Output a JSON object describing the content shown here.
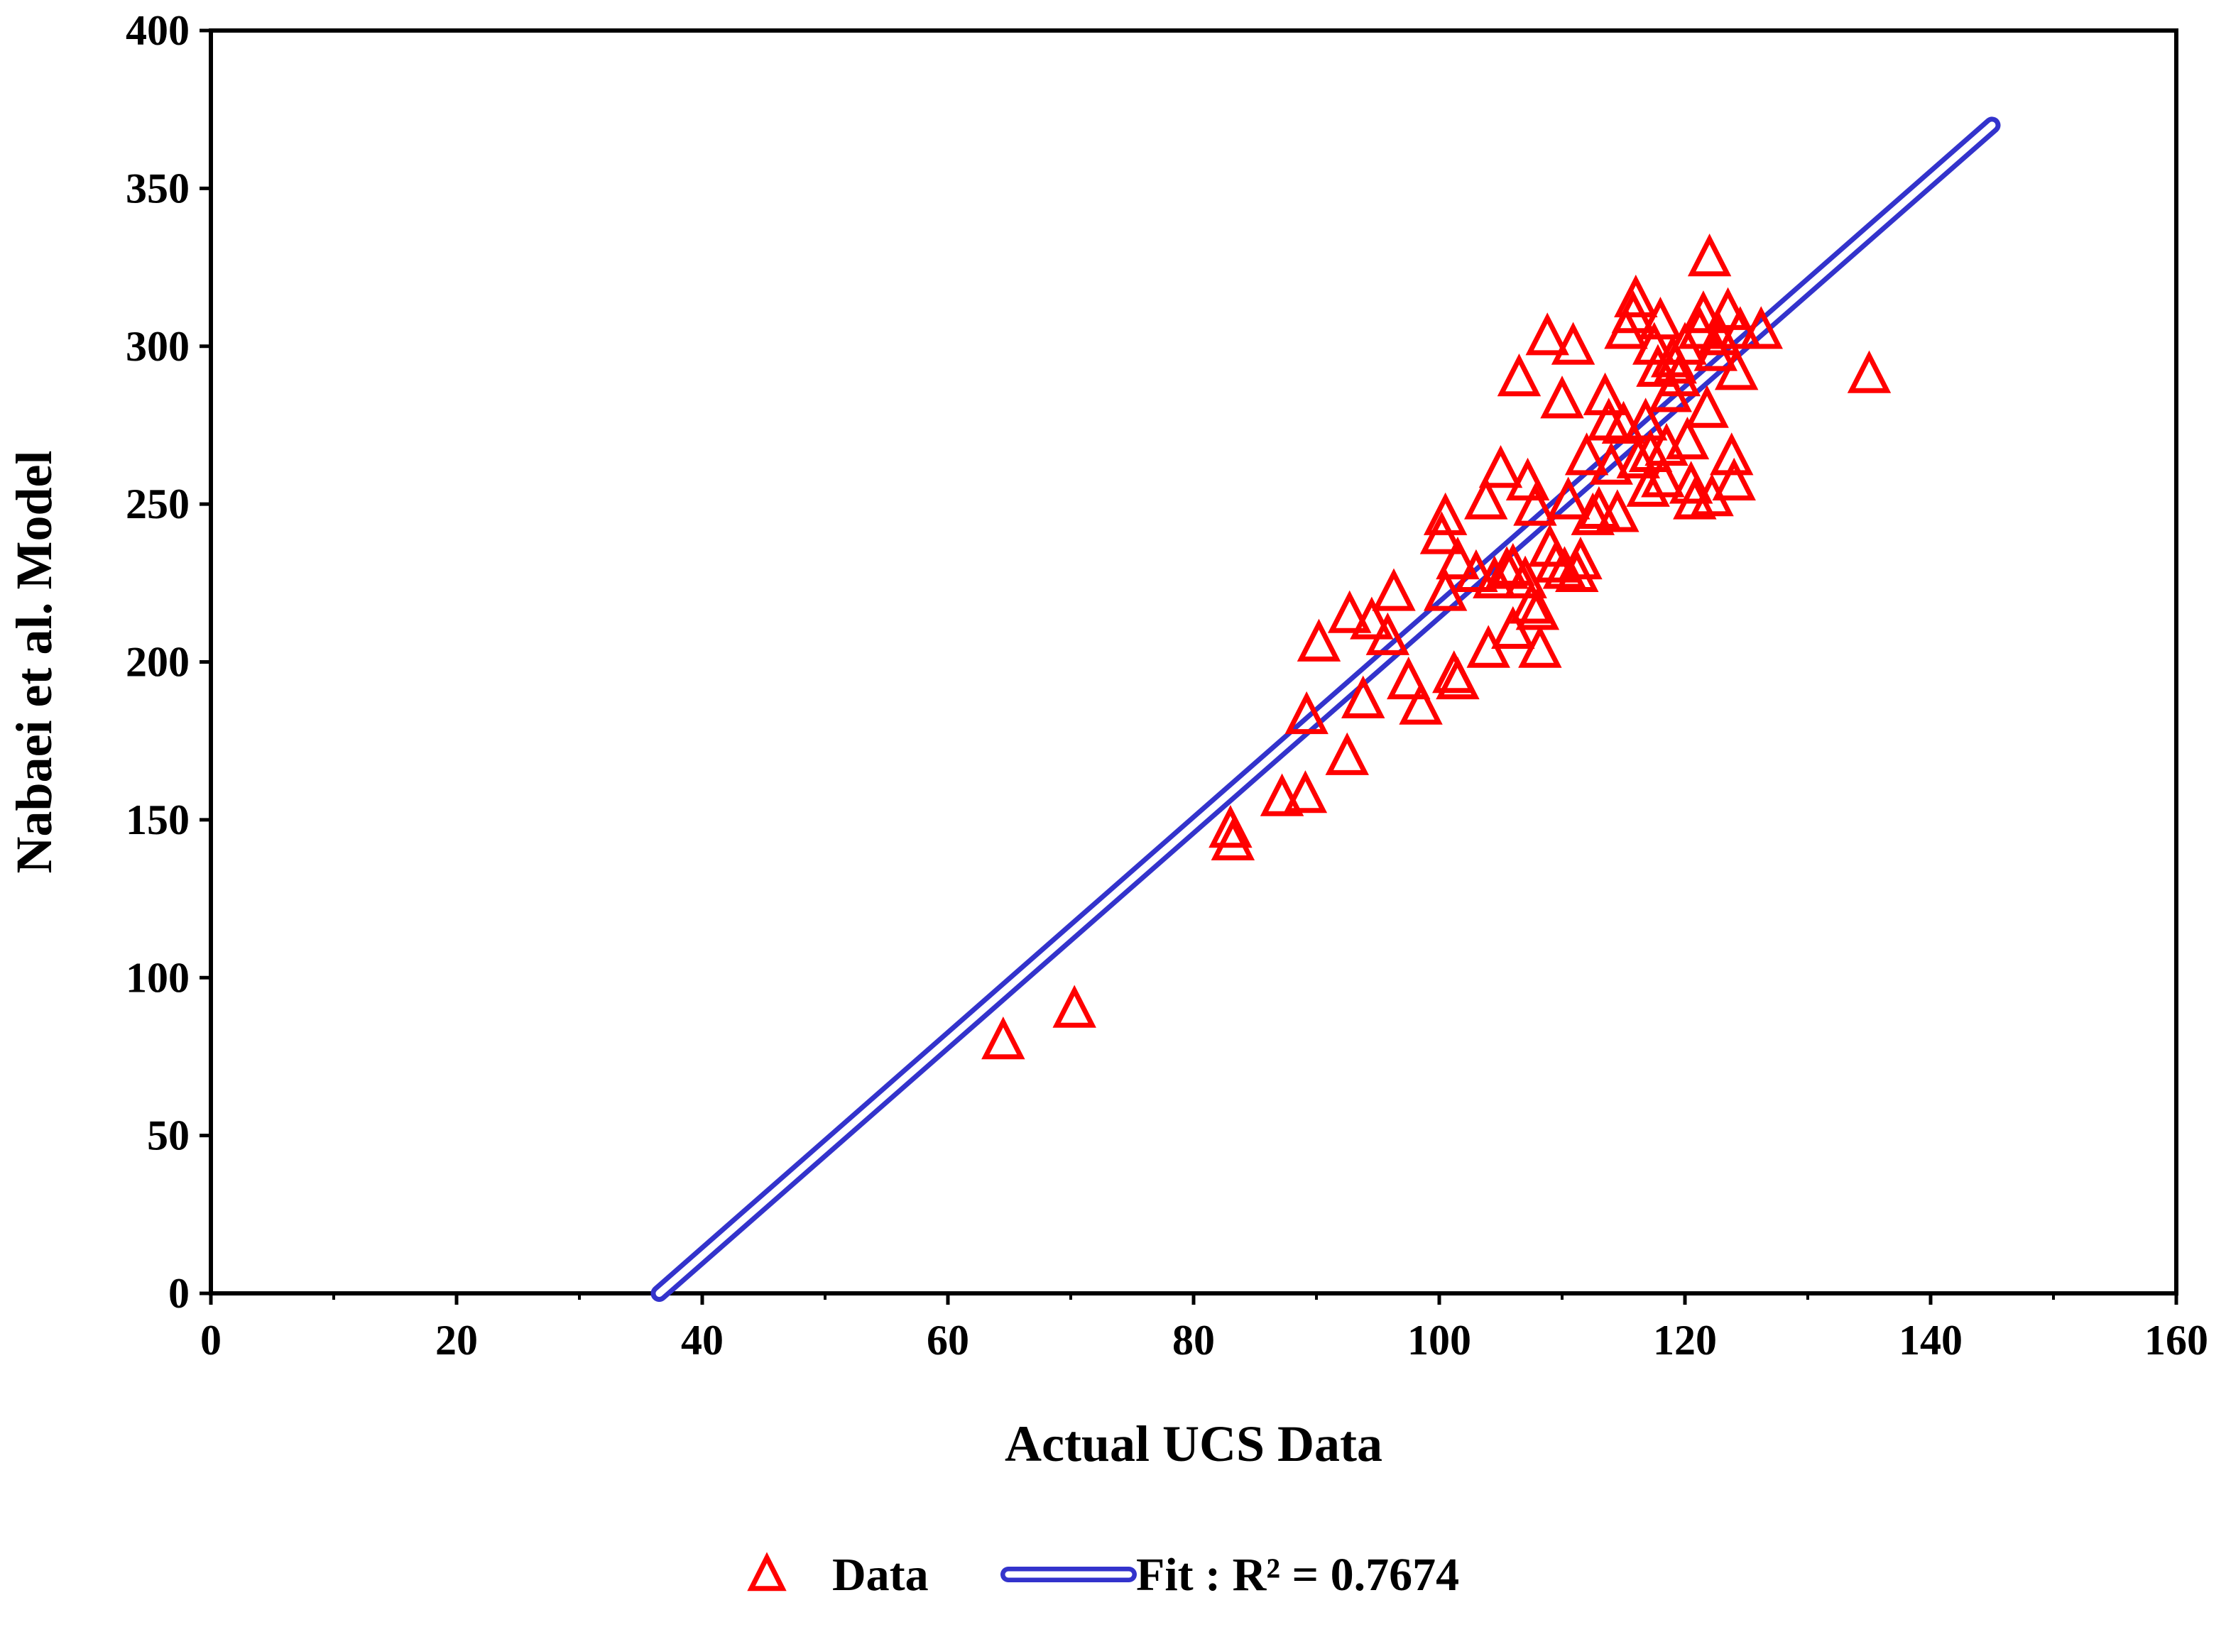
{
  "chart_data": {
    "type": "scatter",
    "title": "",
    "xlabel": "Actual UCS Data",
    "ylabel": "Nabaei et al. Model",
    "xlim": [
      0,
      160
    ],
    "ylim": [
      0,
      400
    ],
    "xticks": [
      0,
      20,
      40,
      60,
      80,
      100,
      120,
      140,
      160
    ],
    "yticks": [
      0,
      50,
      100,
      150,
      200,
      250,
      300,
      350,
      400
    ],
    "grid": false,
    "legend_position": "bottom-center",
    "series": [
      {
        "name": "Data",
        "kind": "scatter",
        "marker": "triangle-open",
        "color": "#ff0000",
        "points": [
          [
            64.5,
            80
          ],
          [
            70.3,
            90
          ],
          [
            83,
            147
          ],
          [
            83.2,
            143
          ],
          [
            87.2,
            157
          ],
          [
            89.1,
            158
          ],
          [
            89.2,
            183
          ],
          [
            90.2,
            206
          ],
          [
            92.5,
            170
          ],
          [
            92.7,
            215
          ],
          [
            93.8,
            188
          ],
          [
            94.5,
            213
          ],
          [
            95.8,
            208
          ],
          [
            96.3,
            222
          ],
          [
            97.5,
            194
          ],
          [
            98.5,
            186
          ],
          [
            100.2,
            240
          ],
          [
            100.5,
            246
          ],
          [
            100.5,
            222
          ],
          [
            101.2,
            196
          ],
          [
            101.5,
            194
          ],
          [
            101.5,
            232
          ],
          [
            103,
            228
          ],
          [
            103.8,
            251
          ],
          [
            104,
            204
          ],
          [
            104.5,
            226
          ],
          [
            105,
            261
          ],
          [
            105.5,
            229
          ],
          [
            106,
            210
          ],
          [
            106,
            230
          ],
          [
            106.5,
            290
          ],
          [
            107,
            226
          ],
          [
            107.2,
            257
          ],
          [
            107.5,
            218
          ],
          [
            107.8,
            249
          ],
          [
            108,
            216
          ],
          [
            108.2,
            204
          ],
          [
            108.8,
            303
          ],
          [
            109,
            236
          ],
          [
            109.5,
            231
          ],
          [
            110,
            283
          ],
          [
            110.2,
            229
          ],
          [
            110.5,
            251
          ],
          [
            110.9,
            300
          ],
          [
            111.2,
            228
          ],
          [
            111.5,
            232
          ],
          [
            112,
            265
          ],
          [
            112.5,
            246
          ],
          [
            113,
            248
          ],
          [
            113.5,
            284
          ],
          [
            113.8,
            276
          ],
          [
            114,
            262
          ],
          [
            114.5,
            247
          ],
          [
            115,
            275
          ],
          [
            115.2,
            305
          ],
          [
            115.8,
            310
          ],
          [
            116,
            315
          ],
          [
            116.2,
            264
          ],
          [
            116.8,
            276
          ],
          [
            117,
            255
          ],
          [
            117.2,
            266
          ],
          [
            117.5,
            300
          ],
          [
            117.8,
            293
          ],
          [
            118,
            308
          ],
          [
            118.2,
            258
          ],
          [
            118.5,
            268
          ],
          [
            118.8,
            285
          ],
          [
            119,
            296
          ],
          [
            119.2,
            294
          ],
          [
            119.5,
            290
          ],
          [
            120,
            300
          ],
          [
            120.2,
            270
          ],
          [
            120.5,
            256
          ],
          [
            120.8,
            251
          ],
          [
            121.2,
            305
          ],
          [
            121.5,
            310
          ],
          [
            121.8,
            280
          ],
          [
            122,
            328
          ],
          [
            122.2,
            252
          ],
          [
            122.5,
            298
          ],
          [
            122.8,
            303
          ],
          [
            123.5,
            311
          ],
          [
            123.8,
            265
          ],
          [
            124,
            257
          ],
          [
            124.2,
            292
          ],
          [
            124.5,
            305
          ],
          [
            126.2,
            305
          ],
          [
            135,
            291
          ]
        ]
      },
      {
        "name": "Fit :  R² = 0.7674",
        "kind": "line",
        "color": "#3333cc",
        "points": [
          [
            36.5,
            0
          ],
          [
            145,
            370
          ]
        ]
      }
    ]
  },
  "legend": {
    "data_label": "Data",
    "fit_label": "Fit :  R² = 0.7674"
  }
}
